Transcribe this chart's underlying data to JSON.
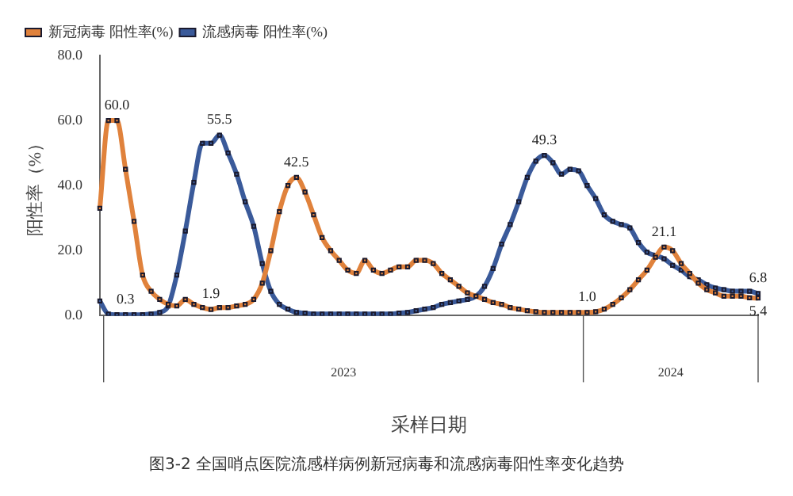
{
  "chart_data": {
    "type": "line",
    "xlabel": "采样日期",
    "ylabel": "阳性率（%）",
    "categories": [
      null,
      null,
      null,
      null,
      null,
      null,
      null,
      null,
      null,
      null,
      null,
      null,
      null,
      null,
      null,
      null,
      null,
      null,
      null,
      null,
      null,
      null,
      null,
      null,
      null,
      null,
      null,
      null,
      null,
      null,
      null,
      null,
      null,
      null,
      null,
      null,
      null,
      null,
      null,
      null,
      null,
      null,
      null,
      null,
      null,
      null,
      null,
      null,
      null,
      null,
      null,
      null,
      null,
      null,
      null,
      null,
      null,
      null,
      null,
      null,
      null,
      null,
      null,
      null,
      null,
      null,
      null,
      null,
      null,
      null,
      null,
      null,
      null,
      null,
      null,
      null,
      null,
      null
    ],
    "series": [
      {
        "name": "新冠病毒 阳性率(%)",
        "color": "#e0823c",
        "values": [
          33,
          60,
          60,
          45,
          29,
          12.5,
          7.5,
          5,
          3.5,
          3,
          5,
          3.5,
          2.5,
          1.9,
          2.5,
          2.5,
          3,
          3.5,
          5,
          10,
          20,
          32,
          40,
          42.5,
          38,
          31,
          24,
          20,
          17,
          14,
          13,
          17,
          14,
          13,
          14,
          15,
          15,
          17,
          17,
          16,
          13,
          11,
          9,
          7,
          6,
          5,
          4,
          3.5,
          2.5,
          2,
          1.5,
          1.2,
          1.0,
          1.0,
          1.0,
          1.0,
          1.0,
          1.0,
          1.2,
          2,
          3.5,
          5.5,
          8,
          11,
          14,
          18,
          21.1,
          20,
          16,
          13,
          10,
          8,
          7,
          6,
          6,
          6,
          5.5,
          5.4
        ],
        "value_labels": [
          null,
          null,
          "60.0",
          null,
          null,
          null,
          null,
          null,
          null,
          null,
          null,
          null,
          null,
          "1.9",
          null,
          null,
          null,
          null,
          null,
          null,
          null,
          null,
          null,
          "42.5",
          null,
          null,
          null,
          null,
          null,
          null,
          null,
          null,
          null,
          null,
          null,
          null,
          null,
          null,
          null,
          null,
          null,
          null,
          null,
          null,
          null,
          null,
          null,
          null,
          null,
          null,
          null,
          null,
          null,
          null,
          null,
          null,
          null,
          "1.0",
          null,
          null,
          null,
          null,
          null,
          null,
          null,
          null,
          "21.1",
          null,
          null,
          null,
          null,
          null,
          null,
          null,
          null,
          null,
          null,
          "5.4"
        ]
      },
      {
        "name": "流感病毒 阳性率(%)",
        "color": "#3a5a9a",
        "values": [
          4.5,
          0.5,
          0.3,
          0.3,
          0.3,
          0.3,
          0.5,
          1,
          3,
          12.5,
          26,
          41,
          53,
          53,
          55.5,
          50,
          43.5,
          35,
          27.5,
          16,
          7.5,
          3.5,
          2,
          1,
          0.8,
          0.5,
          0.5,
          0.5,
          0.5,
          0.5,
          0.5,
          0.5,
          0.5,
          0.5,
          0.5,
          0.8,
          1,
          1.5,
          2,
          2.5,
          3.5,
          4,
          4.5,
          5,
          6,
          9,
          14.5,
          22,
          28,
          35,
          42.5,
          47.5,
          49.3,
          47,
          43.5,
          45,
          44.5,
          40,
          36,
          31,
          29,
          28,
          27,
          22.5,
          19.5,
          18.5,
          17.5,
          15.5,
          14,
          12,
          11,
          9.5,
          8.5,
          8,
          7.5,
          7.5,
          7.5,
          6.8
        ],
        "value_labels": [
          null,
          null,
          null,
          "0.3",
          null,
          null,
          null,
          null,
          null,
          null,
          null,
          null,
          null,
          null,
          "55.5",
          null,
          null,
          null,
          null,
          null,
          null,
          null,
          null,
          null,
          null,
          null,
          null,
          null,
          null,
          null,
          null,
          null,
          null,
          null,
          null,
          null,
          null,
          null,
          null,
          null,
          null,
          null,
          null,
          null,
          null,
          null,
          null,
          null,
          null,
          null,
          null,
          null,
          "49.3",
          null,
          null,
          null,
          null,
          null,
          null,
          null,
          null,
          null,
          null,
          null,
          null,
          null,
          null,
          null,
          null,
          null,
          null,
          null,
          null,
          null,
          null,
          null,
          null,
          "6.8"
        ]
      }
    ],
    "ylim": [
      0,
      80
    ],
    "yticks": [
      {
        "value": 0,
        "label": "0.0"
      },
      {
        "value": 20,
        "label": "20.0"
      },
      {
        "value": 40,
        "label": "40.0"
      },
      {
        "value": 60,
        "label": "60.0"
      },
      {
        "value": 80,
        "label": "80.0"
      }
    ],
    "grid": false,
    "legend": "top left",
    "marker": "square",
    "line_style": "solid",
    "annotations": [
      "2023",
      "2024",
      "图3-2 全国哨点医院流感样病例新冠病毒和流感病毒阳性率变化趋势"
    ]
  }
}
